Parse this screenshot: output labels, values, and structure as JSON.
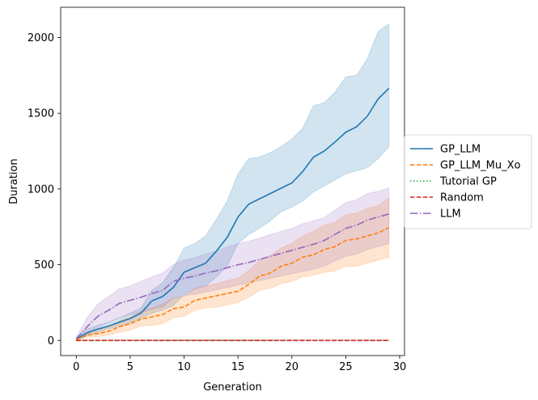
{
  "chart_data": {
    "type": "line",
    "title": "",
    "xlabel": "Generation",
    "ylabel": "Duration",
    "xlim": [
      -1.45,
      30.45
    ],
    "ylim": [
      -100,
      2200
    ],
    "xticks": [
      0,
      5,
      10,
      15,
      20,
      25,
      30
    ],
    "yticks": [
      0,
      500,
      1000,
      1500,
      2000
    ],
    "xtick_labels": [
      "0",
      "5",
      "10",
      "15",
      "20",
      "25",
      "30"
    ],
    "ytick_labels": [
      "0",
      "500",
      "1000",
      "1500",
      "2000"
    ],
    "grid": false,
    "legend_position": "outside-right",
    "x": [
      0,
      1,
      2,
      3,
      4,
      5,
      6,
      7,
      8,
      9,
      10,
      11,
      12,
      13,
      14,
      15,
      16,
      17,
      18,
      19,
      20,
      21,
      22,
      23,
      24,
      25,
      26,
      27,
      28,
      29
    ],
    "series": [
      {
        "name": "GP_LLM",
        "color": "#1f77b4",
        "dash": "solid",
        "values": [
          10,
          50,
          75,
          95,
          120,
          145,
          180,
          260,
          290,
          350,
          450,
          480,
          510,
          590,
          680,
          815,
          900,
          935,
          970,
          1005,
          1040,
          1115,
          1210,
          1250,
          1310,
          1375,
          1410,
          1480,
          1595,
          1665
        ],
        "lower": [
          0,
          30,
          55,
          75,
          95,
          115,
          145,
          180,
          200,
          230,
          300,
          340,
          360,
          420,
          490,
          640,
          700,
          740,
          790,
          850,
          880,
          920,
          980,
          1020,
          1060,
          1100,
          1120,
          1140,
          1200,
          1280
        ],
        "upper": [
          20,
          75,
          100,
          120,
          150,
          180,
          215,
          330,
          380,
          480,
          610,
          640,
          690,
          800,
          920,
          1100,
          1200,
          1210,
          1240,
          1280,
          1330,
          1400,
          1550,
          1570,
          1640,
          1740,
          1750,
          1860,
          2040,
          2090
        ]
      },
      {
        "name": "GP_LLM_Mu_Xo",
        "color": "#ff7f0e",
        "dash": "dashed",
        "values": [
          5,
          35,
          45,
          60,
          90,
          110,
          140,
          155,
          170,
          210,
          220,
          265,
          280,
          295,
          310,
          325,
          370,
          425,
          445,
          490,
          510,
          550,
          565,
          600,
          620,
          660,
          670,
          690,
          710,
          745
        ],
        "lower": [
          0,
          20,
          25,
          35,
          55,
          70,
          95,
          100,
          110,
          150,
          160,
          200,
          215,
          220,
          235,
          250,
          285,
          330,
          345,
          375,
          390,
          420,
          430,
          450,
          460,
          490,
          490,
          510,
          530,
          550
        ],
        "upper": [
          10,
          55,
          70,
          90,
          130,
          155,
          195,
          215,
          240,
          280,
          290,
          340,
          360,
          375,
          395,
          410,
          460,
          530,
          560,
          610,
          640,
          690,
          720,
          760,
          780,
          830,
          840,
          870,
          890,
          940
        ]
      },
      {
        "name": "Tutorial GP",
        "color": "#2ca02c",
        "dash": "dotted",
        "values": [
          0,
          0,
          0,
          0,
          0,
          0,
          0,
          0,
          0,
          0,
          0,
          0,
          0,
          0,
          0,
          0,
          0,
          0,
          0,
          0,
          0,
          0,
          0,
          0,
          0,
          0,
          0,
          0,
          0,
          0
        ],
        "lower": [
          0,
          0,
          0,
          0,
          0,
          0,
          0,
          0,
          0,
          0,
          0,
          0,
          0,
          0,
          0,
          0,
          0,
          0,
          0,
          0,
          0,
          0,
          0,
          0,
          0,
          0,
          0,
          0,
          0,
          0
        ],
        "upper": [
          3,
          3,
          3,
          3,
          3,
          3,
          3,
          3,
          3,
          3,
          3,
          3,
          3,
          3,
          3,
          3,
          3,
          3,
          3,
          3,
          3,
          3,
          3,
          3,
          3,
          3,
          3,
          3,
          3,
          3
        ]
      },
      {
        "name": "Random",
        "color": "#d62728",
        "dash": "dashed",
        "values": [
          0,
          0,
          0,
          0,
          0,
          0,
          0,
          0,
          0,
          0,
          0,
          0,
          0,
          0,
          0,
          0,
          0,
          0,
          0,
          0,
          0,
          0,
          0,
          0,
          0,
          0,
          0,
          0,
          0,
          0
        ],
        "lower": [
          0,
          0,
          0,
          0,
          0,
          0,
          0,
          0,
          0,
          0,
          0,
          0,
          0,
          0,
          0,
          0,
          0,
          0,
          0,
          0,
          0,
          0,
          0,
          0,
          0,
          0,
          0,
          0,
          0,
          0
        ],
        "upper": [
          3,
          3,
          3,
          3,
          3,
          3,
          3,
          3,
          3,
          3,
          3,
          3,
          3,
          3,
          3,
          3,
          3,
          3,
          3,
          3,
          3,
          3,
          3,
          3,
          3,
          3,
          3,
          3,
          3,
          3
        ]
      },
      {
        "name": "LLM",
        "color": "#9467bd",
        "dash": "dashdot",
        "values": [
          10,
          90,
          160,
          200,
          245,
          265,
          285,
          310,
          330,
          390,
          410,
          425,
          445,
          460,
          480,
          500,
          515,
          535,
          555,
          575,
          595,
          615,
          635,
          660,
          700,
          740,
          760,
          795,
          815,
          835
        ],
        "lower": [
          0,
          40,
          90,
          120,
          150,
          170,
          185,
          205,
          220,
          280,
          295,
          305,
          320,
          335,
          350,
          365,
          380,
          395,
          410,
          425,
          440,
          455,
          470,
          490,
          525,
          555,
          570,
          600,
          620,
          640
        ],
        "upper": [
          20,
          150,
          240,
          290,
          340,
          360,
          390,
          420,
          445,
          500,
          530,
          545,
          570,
          590,
          615,
          640,
          655,
          675,
          700,
          720,
          740,
          770,
          790,
          810,
          860,
          910,
          930,
          970,
          985,
          1005
        ]
      }
    ]
  }
}
